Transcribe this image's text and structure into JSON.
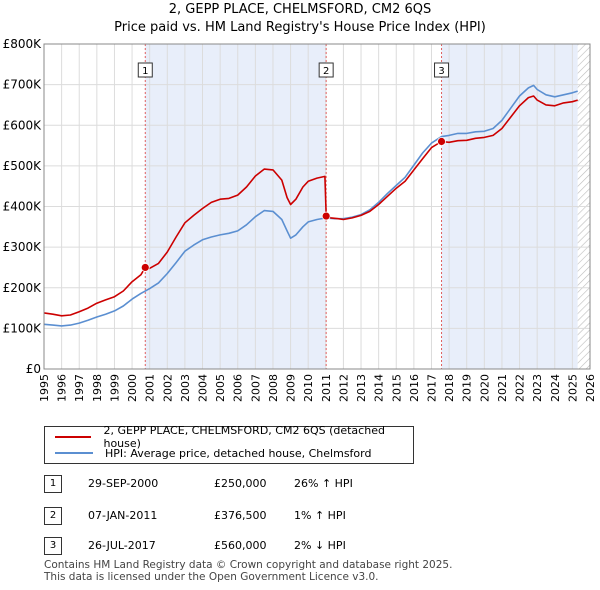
{
  "chart_data": {
    "type": "line",
    "title": "2, GEPP PLACE, CHELMSFORD, CM2 6QS",
    "subtitle": "Price paid vs. HM Land Registry's House Price Index (HPI)",
    "xlabel": "",
    "ylabel": "",
    "xlim": [
      1995,
      2026
    ],
    "ylim": [
      0,
      800000
    ],
    "yticks": [
      {
        "value": 0,
        "label": "£0"
      },
      {
        "value": 100000,
        "label": "£100K"
      },
      {
        "value": 200000,
        "label": "£200K"
      },
      {
        "value": 300000,
        "label": "£300K"
      },
      {
        "value": 400000,
        "label": "£400K"
      },
      {
        "value": 500000,
        "label": "£500K"
      },
      {
        "value": 600000,
        "label": "£600K"
      },
      {
        "value": 700000,
        "label": "£700K"
      },
      {
        "value": 800000,
        "label": "£800K"
      }
    ],
    "xticks": [
      "1995",
      "1996",
      "1997",
      "1998",
      "1999",
      "2000",
      "2001",
      "2002",
      "2003",
      "2004",
      "2005",
      "2006",
      "2007",
      "2008",
      "2009",
      "2010",
      "2011",
      "2012",
      "2013",
      "2014",
      "2015",
      "2016",
      "2017",
      "2018",
      "2019",
      "2020",
      "2021",
      "2022",
      "2023",
      "2024",
      "2025",
      "2026"
    ],
    "grid": true,
    "ownership_shading": [
      {
        "from": 2000.75,
        "to": 2011.02
      },
      {
        "from": 2017.57,
        "to": 2025.3
      }
    ],
    "hatched_after": 2025.3,
    "series": [
      {
        "name": "2, GEPP PLACE, CHELMSFORD, CM2 6QS (detached house)",
        "color": "#cc0000",
        "points": [
          [
            1995.0,
            138000
          ],
          [
            1995.5,
            135000
          ],
          [
            1996.0,
            131000
          ],
          [
            1996.5,
            133000
          ],
          [
            1997.0,
            141000
          ],
          [
            1997.5,
            150000
          ],
          [
            1998.0,
            162000
          ],
          [
            1998.5,
            170000
          ],
          [
            1999.0,
            178000
          ],
          [
            1999.5,
            192000
          ],
          [
            2000.0,
            215000
          ],
          [
            2000.5,
            232000
          ],
          [
            2000.75,
            250000
          ],
          [
            2001.0,
            248000
          ],
          [
            2001.5,
            260000
          ],
          [
            2002.0,
            288000
          ],
          [
            2002.5,
            325000
          ],
          [
            2003.0,
            360000
          ],
          [
            2003.5,
            378000
          ],
          [
            2004.0,
            395000
          ],
          [
            2004.5,
            410000
          ],
          [
            2005.0,
            418000
          ],
          [
            2005.5,
            420000
          ],
          [
            2006.0,
            428000
          ],
          [
            2006.5,
            448000
          ],
          [
            2007.0,
            475000
          ],
          [
            2007.5,
            492000
          ],
          [
            2008.0,
            490000
          ],
          [
            2008.5,
            465000
          ],
          [
            2008.8,
            422000
          ],
          [
            2009.0,
            405000
          ],
          [
            2009.3,
            418000
          ],
          [
            2009.7,
            448000
          ],
          [
            2010.0,
            462000
          ],
          [
            2010.5,
            470000
          ],
          [
            2010.95,
            474000
          ],
          [
            2011.02,
            376500
          ],
          [
            2011.3,
            372000
          ],
          [
            2011.7,
            370000
          ],
          [
            2012.0,
            368000
          ],
          [
            2012.5,
            372000
          ],
          [
            2013.0,
            378000
          ],
          [
            2013.5,
            388000
          ],
          [
            2014.0,
            405000
          ],
          [
            2014.5,
            425000
          ],
          [
            2015.0,
            445000
          ],
          [
            2015.5,
            462000
          ],
          [
            2016.0,
            490000
          ],
          [
            2016.5,
            518000
          ],
          [
            2017.0,
            545000
          ],
          [
            2017.57,
            560000
          ],
          [
            2018.0,
            558000
          ],
          [
            2018.5,
            562000
          ],
          [
            2019.0,
            563000
          ],
          [
            2019.5,
            568000
          ],
          [
            2020.0,
            570000
          ],
          [
            2020.5,
            575000
          ],
          [
            2021.0,
            592000
          ],
          [
            2021.5,
            620000
          ],
          [
            2022.0,
            648000
          ],
          [
            2022.5,
            668000
          ],
          [
            2022.8,
            672000
          ],
          [
            2023.0,
            662000
          ],
          [
            2023.5,
            650000
          ],
          [
            2024.0,
            648000
          ],
          [
            2024.5,
            655000
          ],
          [
            2025.0,
            658000
          ],
          [
            2025.3,
            662000
          ]
        ]
      },
      {
        "name": "HPI: Average price, detached house, Chelmsford",
        "color": "#5b8fd1",
        "points": [
          [
            1995.0,
            110000
          ],
          [
            1995.5,
            108000
          ],
          [
            1996.0,
            106000
          ],
          [
            1996.5,
            108000
          ],
          [
            1997.0,
            113000
          ],
          [
            1997.5,
            120000
          ],
          [
            1998.0,
            128000
          ],
          [
            1998.5,
            135000
          ],
          [
            1999.0,
            143000
          ],
          [
            1999.5,
            155000
          ],
          [
            2000.0,
            172000
          ],
          [
            2000.5,
            186000
          ],
          [
            2001.0,
            198000
          ],
          [
            2001.5,
            212000
          ],
          [
            2002.0,
            235000
          ],
          [
            2002.5,
            262000
          ],
          [
            2003.0,
            290000
          ],
          [
            2003.5,
            305000
          ],
          [
            2004.0,
            318000
          ],
          [
            2004.5,
            325000
          ],
          [
            2005.0,
            330000
          ],
          [
            2005.5,
            334000
          ],
          [
            2006.0,
            340000
          ],
          [
            2006.5,
            355000
          ],
          [
            2007.0,
            375000
          ],
          [
            2007.5,
            390000
          ],
          [
            2008.0,
            388000
          ],
          [
            2008.5,
            368000
          ],
          [
            2008.8,
            340000
          ],
          [
            2009.0,
            322000
          ],
          [
            2009.3,
            330000
          ],
          [
            2009.7,
            350000
          ],
          [
            2010.0,
            362000
          ],
          [
            2010.5,
            368000
          ],
          [
            2011.0,
            372000
          ],
          [
            2011.5,
            370000
          ],
          [
            2012.0,
            370000
          ],
          [
            2012.5,
            374000
          ],
          [
            2013.0,
            380000
          ],
          [
            2013.5,
            392000
          ],
          [
            2014.0,
            410000
          ],
          [
            2014.5,
            432000
          ],
          [
            2015.0,
            452000
          ],
          [
            2015.5,
            472000
          ],
          [
            2016.0,
            502000
          ],
          [
            2016.5,
            532000
          ],
          [
            2017.0,
            556000
          ],
          [
            2017.57,
            572000
          ],
          [
            2018.0,
            575000
          ],
          [
            2018.5,
            580000
          ],
          [
            2019.0,
            580000
          ],
          [
            2019.5,
            584000
          ],
          [
            2020.0,
            585000
          ],
          [
            2020.5,
            592000
          ],
          [
            2021.0,
            612000
          ],
          [
            2021.5,
            642000
          ],
          [
            2022.0,
            672000
          ],
          [
            2022.5,
            692000
          ],
          [
            2022.8,
            698000
          ],
          [
            2023.0,
            688000
          ],
          [
            2023.5,
            675000
          ],
          [
            2024.0,
            670000
          ],
          [
            2024.5,
            675000
          ],
          [
            2025.0,
            680000
          ],
          [
            2025.3,
            684000
          ]
        ]
      }
    ],
    "sales": [
      {
        "label": "1",
        "x": 2000.75,
        "y": 250000
      },
      {
        "label": "2",
        "x": 2011.02,
        "y": 376500
      },
      {
        "label": "3",
        "x": 2017.57,
        "y": 560000
      }
    ]
  },
  "legend": {
    "property_label": "2, GEPP PLACE, CHELMSFORD, CM2 6QS (detached house)",
    "hpi_label": "HPI: Average price, detached house, Chelmsford",
    "property_color": "#cc0000",
    "hpi_color": "#5b8fd1"
  },
  "transactions": [
    {
      "num": "1",
      "date": "29-SEP-2000",
      "price": "£250,000",
      "hpi": "26% ↑ HPI"
    },
    {
      "num": "2",
      "date": "07-JAN-2011",
      "price": "£376,500",
      "hpi": "1% ↑ HPI"
    },
    {
      "num": "3",
      "date": "26-JUL-2017",
      "price": "£560,000",
      "hpi": "2% ↓ HPI"
    }
  ],
  "footer": {
    "line1": "Contains HM Land Registry data © Crown copyright and database right 2025.",
    "line2": "This data is licensed under the Open Government Licence v3.0."
  }
}
